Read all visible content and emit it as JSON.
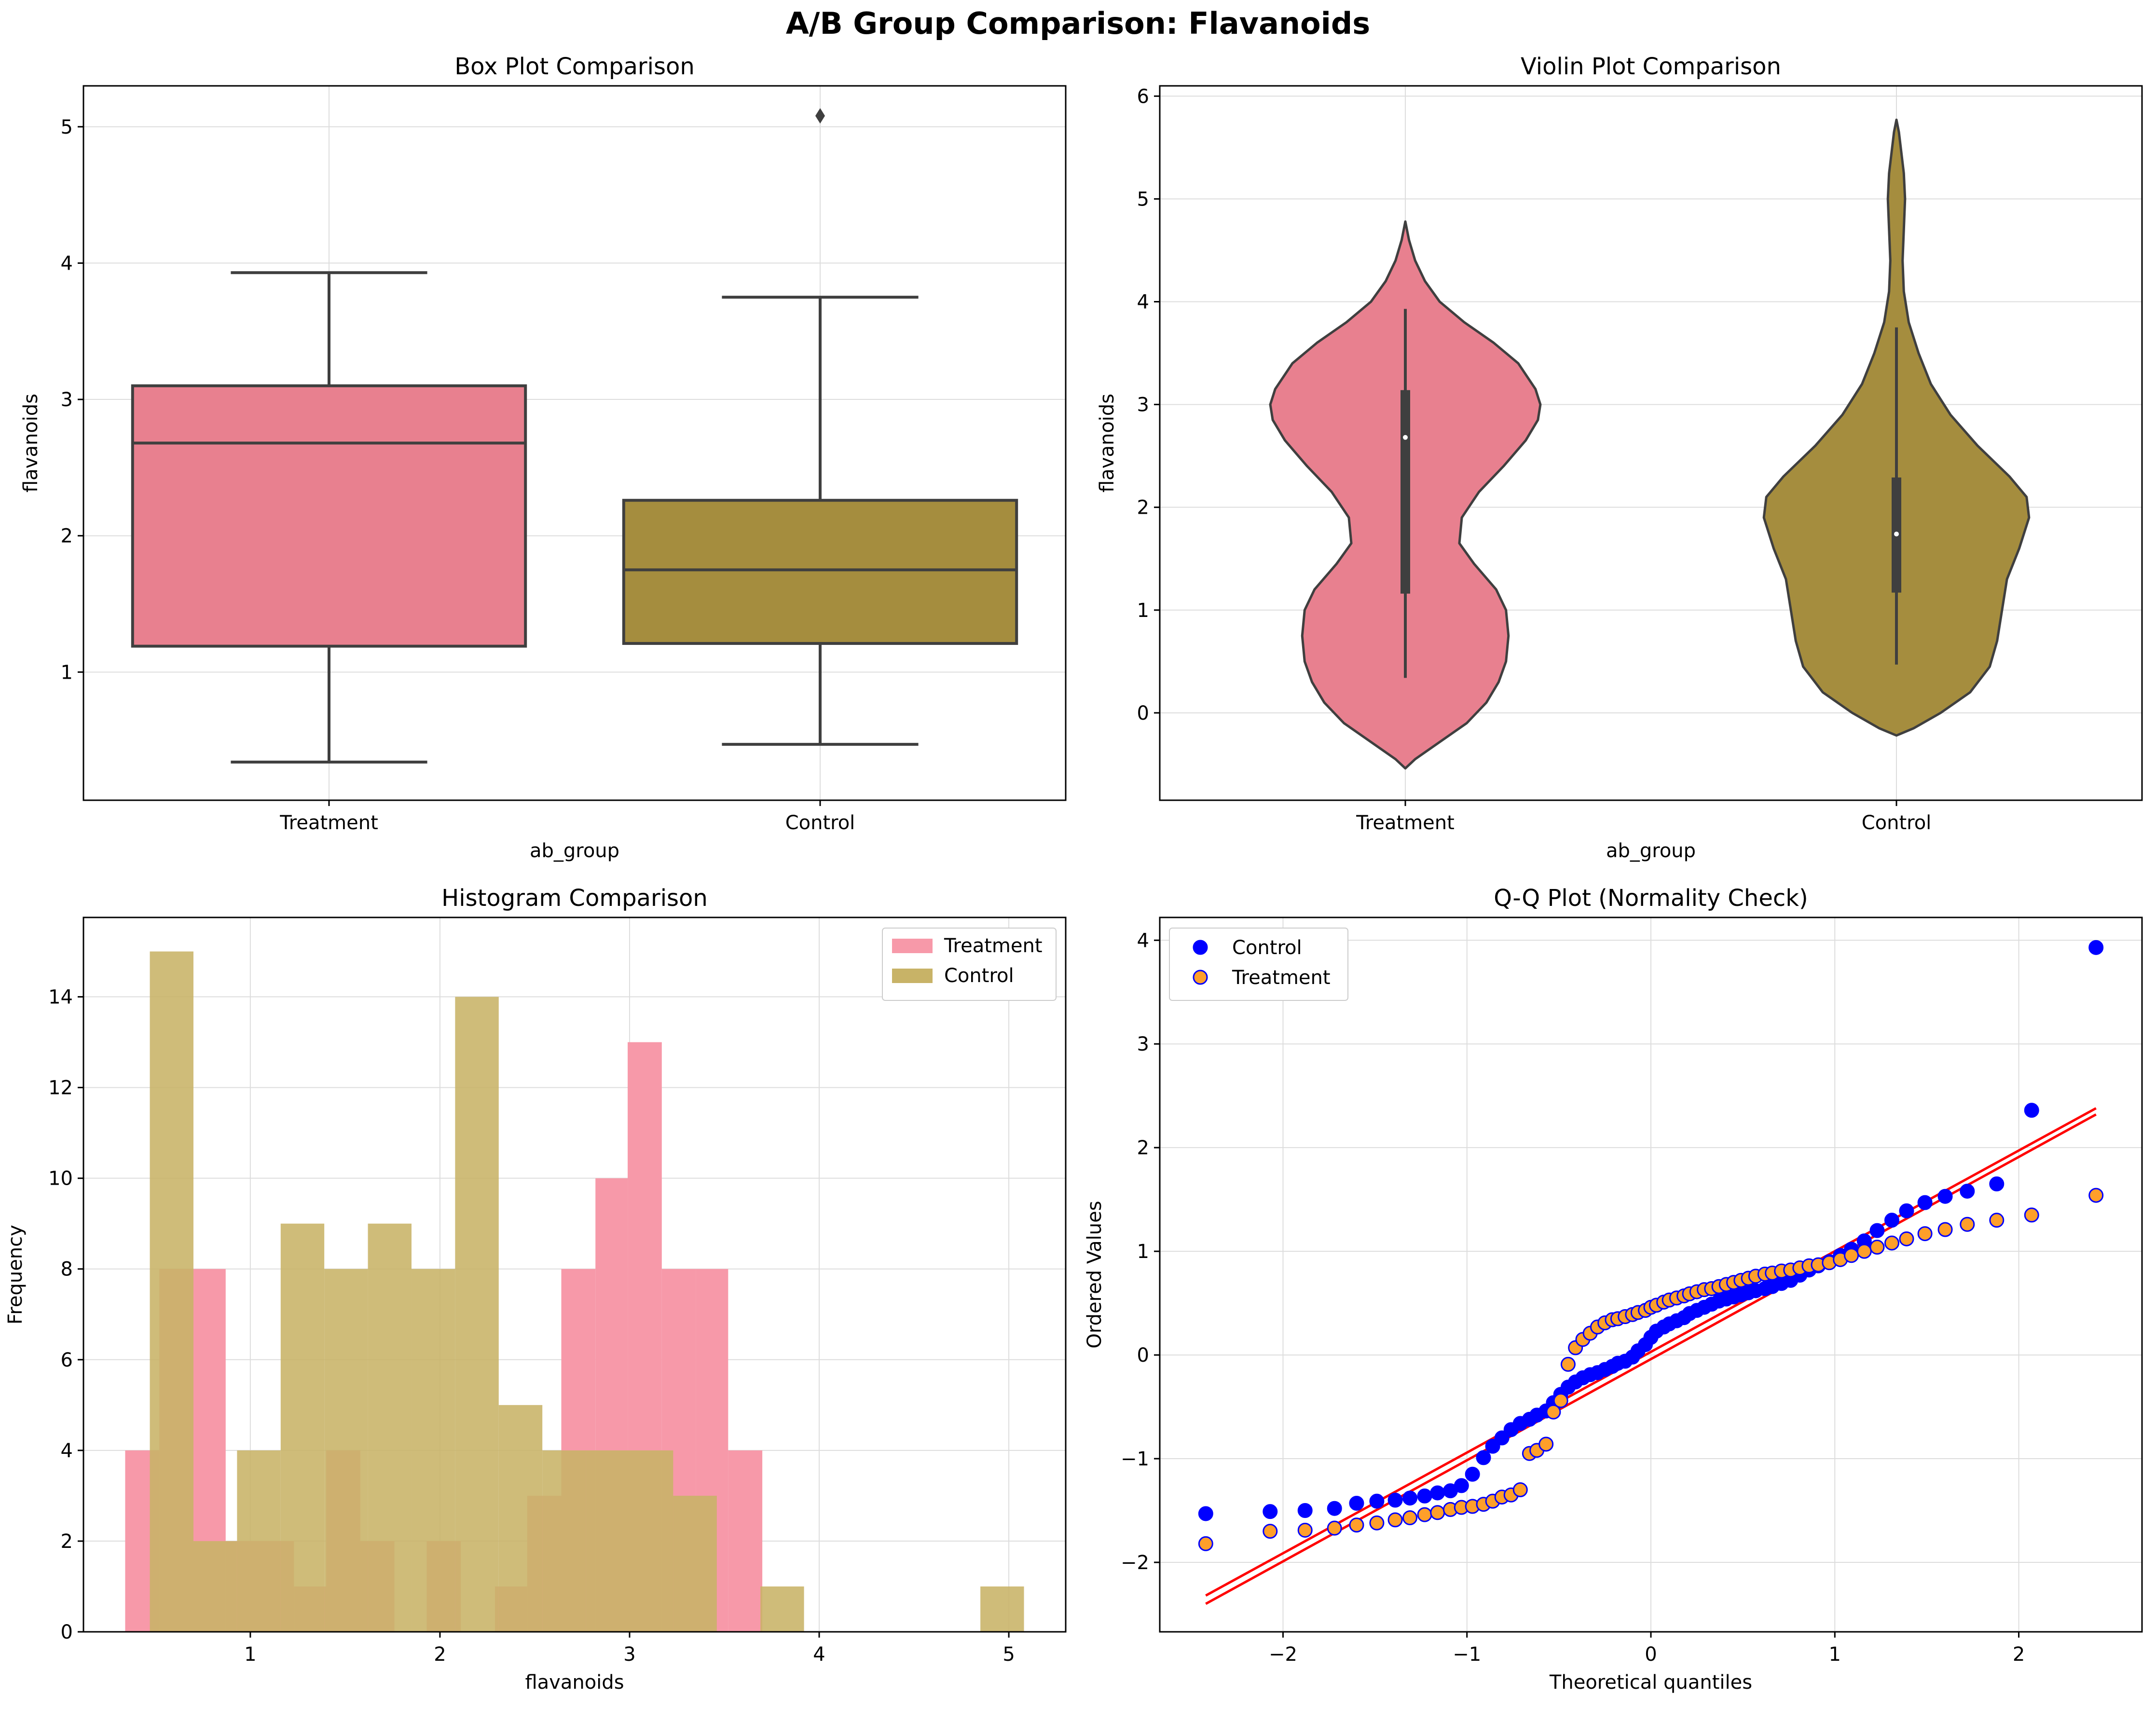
{
  "figure": {
    "suptitle": "A/B Group Comparison: Flavanoids",
    "colors": {
      "treatment": "#e8808f",
      "control": "#a58d3e",
      "treatment_hist": "#f799a9",
      "control_hist": "#c8b367",
      "qq_control": "#0000ff",
      "qq_treatment": "#ff9f2a",
      "qq_line": "#ff0000",
      "box_line": "#3f3f3f",
      "grid": "#dddddd"
    }
  },
  "chart_data": [
    {
      "type": "box",
      "title": "Box Plot Comparison",
      "xlabel": "ab_group",
      "ylabel": "flavanoids",
      "categories": [
        "Treatment",
        "Control"
      ],
      "boxes": [
        {
          "name": "Treatment",
          "whisker_low": 0.34,
          "q1": 1.19,
          "median": 2.68,
          "q3": 3.1,
          "whisker_high": 3.93,
          "outliers": []
        },
        {
          "name": "Control",
          "whisker_low": 0.47,
          "q1": 1.21,
          "median": 1.75,
          "q3": 2.26,
          "whisker_high": 3.75,
          "outliers": [
            5.08
          ]
        }
      ],
      "ylim": [
        0.06,
        5.3
      ],
      "yticks": [
        1,
        2,
        3,
        4,
        5
      ],
      "grid": true
    },
    {
      "type": "violin",
      "title": "Violin Plot Comparison",
      "xlabel": "ab_group",
      "ylabel": "flavanoids",
      "categories": [
        "Treatment",
        "Control"
      ],
      "violins": [
        {
          "name": "Treatment",
          "min": 0.34,
          "q1": 1.16,
          "median": 2.68,
          "q3": 3.14,
          "max": 3.93,
          "profile": [
            [
              -0.54,
              0
            ],
            [
              -0.45,
              0.04
            ],
            [
              -0.3,
              0.13
            ],
            [
              -0.1,
              0.25
            ],
            [
              0.1,
              0.33
            ],
            [
              0.3,
              0.38
            ],
            [
              0.5,
              0.41
            ],
            [
              0.75,
              0.42
            ],
            [
              1.0,
              0.41
            ],
            [
              1.2,
              0.37
            ],
            [
              1.45,
              0.28
            ],
            [
              1.65,
              0.22
            ],
            [
              1.9,
              0.23
            ],
            [
              2.15,
              0.3
            ],
            [
              2.4,
              0.4
            ],
            [
              2.65,
              0.49
            ],
            [
              2.85,
              0.54
            ],
            [
              3.0,
              0.55
            ],
            [
              3.15,
              0.53
            ],
            [
              3.4,
              0.46
            ],
            [
              3.6,
              0.36
            ],
            [
              3.8,
              0.24
            ],
            [
              4.0,
              0.14
            ],
            [
              4.2,
              0.08
            ],
            [
              4.4,
              0.04
            ],
            [
              4.6,
              0.015
            ],
            [
              4.78,
              0
            ]
          ]
        },
        {
          "name": "Control",
          "min": 0.47,
          "q1": 1.17,
          "median": 1.74,
          "q3": 2.29,
          "max": 3.75,
          "profile": [
            [
              -0.22,
              0
            ],
            [
              -0.15,
              0.07
            ],
            [
              0,
              0.18
            ],
            [
              0.2,
              0.3
            ],
            [
              0.45,
              0.38
            ],
            [
              0.7,
              0.41
            ],
            [
              1.0,
              0.43
            ],
            [
              1.3,
              0.45
            ],
            [
              1.6,
              0.5
            ],
            [
              1.9,
              0.54
            ],
            [
              2.1,
              0.53
            ],
            [
              2.3,
              0.46
            ],
            [
              2.6,
              0.33
            ],
            [
              2.9,
              0.22
            ],
            [
              3.2,
              0.14
            ],
            [
              3.5,
              0.09
            ],
            [
              3.8,
              0.05
            ],
            [
              4.1,
              0.03
            ],
            [
              4.4,
              0.025
            ],
            [
              4.7,
              0.03
            ],
            [
              5.0,
              0.035
            ],
            [
              5.25,
              0.03
            ],
            [
              5.45,
              0.02
            ],
            [
              5.65,
              0.01
            ],
            [
              5.77,
              0
            ]
          ]
        }
      ],
      "ylim": [
        -0.85,
        6.1
      ],
      "yticks": [
        0,
        1,
        2,
        3,
        4,
        5,
        6
      ],
      "grid": true
    },
    {
      "type": "histogram",
      "title": "Histogram Comparison",
      "xlabel": "flavanoids",
      "ylabel": "Frequency",
      "series": [
        {
          "name": "Treatment",
          "bin_edges": [
            0.34,
            0.52,
            0.7,
            0.87,
            1.05,
            1.23,
            1.4,
            1.58,
            1.76,
            1.93,
            2.11,
            2.29,
            2.46,
            2.64,
            2.82,
            2.99,
            3.17,
            3.35,
            3.52,
            3.7
          ],
          "counts": [
            4,
            8,
            8,
            2,
            2,
            1,
            4,
            2,
            0,
            2,
            0,
            1,
            3,
            8,
            10,
            13,
            8,
            8,
            4
          ]
        },
        {
          "name": "Control",
          "bin_edges": [
            0.47,
            0.7,
            0.93,
            1.16,
            1.39,
            1.62,
            1.85,
            2.08,
            2.31,
            2.54,
            2.77,
            3.0,
            3.23,
            3.46,
            3.69,
            3.92,
            4.15,
            4.39,
            4.62,
            4.85,
            5.08
          ],
          "counts": [
            15,
            2,
            4,
            9,
            8,
            9,
            8,
            14,
            5,
            4,
            4,
            4,
            3,
            0,
            1,
            0,
            0,
            0,
            0,
            1
          ]
        }
      ],
      "xlim": [
        0.12,
        5.3
      ],
      "ylim": [
        0,
        15.75
      ],
      "xticks": [
        1,
        2,
        3,
        4,
        5
      ],
      "yticks": [
        0,
        2,
        4,
        6,
        8,
        10,
        12,
        14
      ],
      "legend": "top-right",
      "grid": true
    },
    {
      "type": "scatter",
      "title": "Q-Q Plot (Normality Check)",
      "xlabel": "Theoretical quantiles",
      "ylabel": "Ordered Values",
      "series": [
        {
          "name": "Control",
          "x": [
            -2.42,
            -2.07,
            -1.88,
            -1.72,
            -1.6,
            -1.49,
            -1.39,
            -1.31,
            -1.23,
            -1.16,
            -1.09,
            -1.03,
            -0.97,
            -0.91,
            -0.86,
            -0.81,
            -0.76,
            -0.71,
            -0.66,
            -0.62,
            -0.57,
            -0.53,
            -0.49,
            -0.45,
            -0.41,
            -0.37,
            -0.33,
            -0.29,
            -0.25,
            -0.21,
            -0.18,
            -0.14,
            -0.1,
            -0.07,
            -0.03,
            0,
            0.03,
            0.07,
            0.1,
            0.14,
            0.18,
            0.21,
            0.25,
            0.29,
            0.33,
            0.37,
            0.41,
            0.45,
            0.49,
            0.53,
            0.57,
            0.62,
            0.66,
            0.71,
            0.76,
            0.81,
            0.86,
            0.91,
            0.97,
            1.03,
            1.09,
            1.16,
            1.23,
            1.31,
            1.39,
            1.49,
            1.6,
            1.72,
            1.88,
            2.07,
            2.42
          ],
          "y": [
            -1.53,
            -1.51,
            -1.5,
            -1.48,
            -1.43,
            -1.41,
            -1.4,
            -1.38,
            -1.36,
            -1.33,
            -1.31,
            -1.26,
            -1.15,
            -0.99,
            -0.88,
            -0.8,
            -0.72,
            -0.66,
            -0.62,
            -0.58,
            -0.54,
            -0.46,
            -0.38,
            -0.31,
            -0.26,
            -0.22,
            -0.19,
            -0.17,
            -0.14,
            -0.11,
            -0.08,
            -0.06,
            -0.02,
            0.04,
            0.1,
            0.17,
            0.23,
            0.27,
            0.3,
            0.33,
            0.36,
            0.4,
            0.43,
            0.46,
            0.49,
            0.52,
            0.54,
            0.56,
            0.58,
            0.6,
            0.62,
            0.64,
            0.66,
            0.69,
            0.72,
            0.77,
            0.82,
            0.86,
            0.9,
            0.96,
            1.02,
            1.1,
            1.2,
            1.3,
            1.39,
            1.47,
            1.53,
            1.58,
            1.65,
            2.36,
            3.93
          ]
        },
        {
          "name": "Treatment",
          "x": [
            -2.42,
            -2.07,
            -1.88,
            -1.72,
            -1.6,
            -1.49,
            -1.39,
            -1.31,
            -1.23,
            -1.16,
            -1.09,
            -1.03,
            -0.97,
            -0.91,
            -0.86,
            -0.81,
            -0.76,
            -0.71,
            -0.66,
            -0.62,
            -0.57,
            -0.53,
            -0.49,
            -0.45,
            -0.41,
            -0.37,
            -0.33,
            -0.29,
            -0.25,
            -0.21,
            -0.18,
            -0.14,
            -0.1,
            -0.07,
            -0.03,
            0,
            0.03,
            0.07,
            0.1,
            0.14,
            0.18,
            0.21,
            0.25,
            0.29,
            0.33,
            0.37,
            0.41,
            0.45,
            0.49,
            0.53,
            0.57,
            0.62,
            0.66,
            0.71,
            0.76,
            0.81,
            0.86,
            0.91,
            0.97,
            1.03,
            1.09,
            1.16,
            1.23,
            1.31,
            1.39,
            1.49,
            1.6,
            1.72,
            1.88,
            2.07,
            2.42
          ],
          "y": [
            -1.82,
            -1.7,
            -1.69,
            -1.67,
            -1.64,
            -1.62,
            -1.59,
            -1.57,
            -1.54,
            -1.52,
            -1.49,
            -1.47,
            -1.46,
            -1.44,
            -1.41,
            -1.37,
            -1.35,
            -1.3,
            -0.95,
            -0.92,
            -0.86,
            -0.55,
            -0.44,
            -0.09,
            0.07,
            0.15,
            0.21,
            0.27,
            0.31,
            0.34,
            0.35,
            0.37,
            0.39,
            0.41,
            0.43,
            0.46,
            0.48,
            0.51,
            0.53,
            0.55,
            0.57,
            0.59,
            0.61,
            0.63,
            0.64,
            0.66,
            0.68,
            0.7,
            0.72,
            0.74,
            0.76,
            0.78,
            0.79,
            0.81,
            0.82,
            0.84,
            0.86,
            0.87,
            0.89,
            0.92,
            0.96,
            1.0,
            1.04,
            1.08,
            1.12,
            1.17,
            1.21,
            1.26,
            1.3,
            1.35,
            1.54
          ]
        },
        {
          "name": "",
          "type": "line",
          "x": [
            -2.42,
            2.42
          ],
          "y": [
            -2.32,
            2.38
          ]
        },
        {
          "name": "",
          "type": "line",
          "x": [
            -2.42,
            2.42
          ],
          "y": [
            -2.4,
            2.32
          ]
        }
      ],
      "xlim": [
        -2.67,
        2.67
      ],
      "ylim": [
        -2.67,
        4.22
      ],
      "xticks": [
        -2,
        -1,
        0,
        1,
        2
      ],
      "yticks": [
        -2,
        -1,
        0,
        1,
        2,
        3,
        4
      ],
      "legend": "top-left",
      "grid": true
    }
  ]
}
